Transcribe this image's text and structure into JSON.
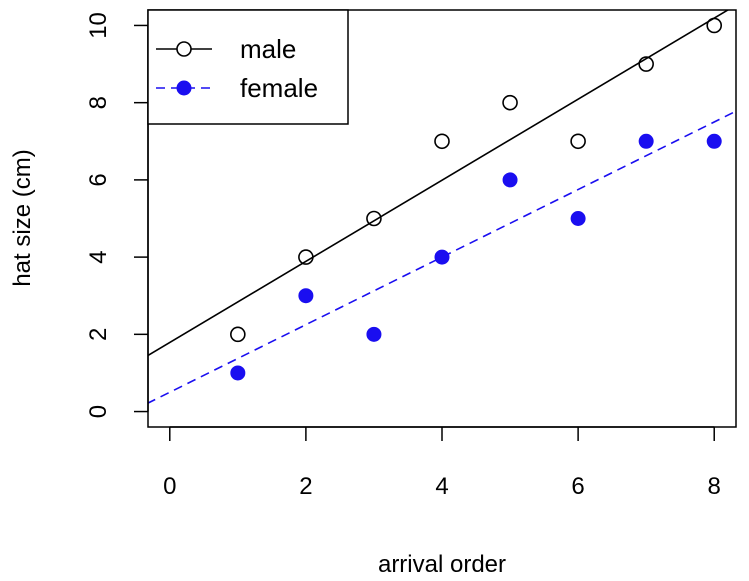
{
  "chart_data": {
    "type": "scatter",
    "title": "",
    "xlabel": "arrival order",
    "ylabel": "hat size (cm)",
    "xlim": [
      -0.32,
      8.32
    ],
    "ylim": [
      -0.4,
      10.4
    ],
    "xticks": [
      0,
      2,
      4,
      6,
      8
    ],
    "yticks": [
      0,
      2,
      4,
      6,
      8,
      10
    ],
    "grid": false,
    "legend_position": "top-left",
    "series": [
      {
        "name": "male",
        "marker": "open-circle",
        "line_style": "solid",
        "color": "#000000",
        "x": [
          1,
          2,
          3,
          4,
          5,
          6,
          7,
          8
        ],
        "y": [
          2,
          4,
          5,
          7,
          8,
          7,
          9,
          10
        ],
        "fit": {
          "intercept": 1.79,
          "slope": 1.05
        }
      },
      {
        "name": "female",
        "marker": "filled-circle",
        "line_style": "dashed",
        "color": "#1a0ef0",
        "x": [
          1,
          2,
          3,
          4,
          5,
          6,
          7,
          8
        ],
        "y": [
          1,
          3,
          2,
          4,
          6,
          5,
          7,
          7
        ],
        "fit": {
          "intercept": 0.5,
          "slope": 0.875
        }
      }
    ]
  }
}
